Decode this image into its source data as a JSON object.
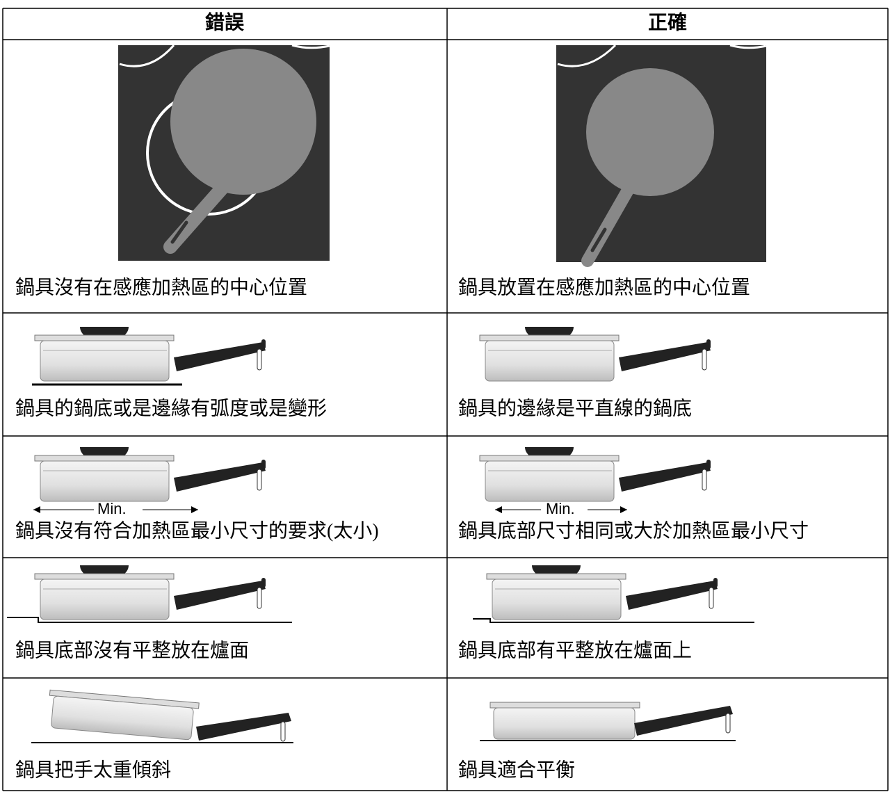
{
  "table": {
    "header": [
      "錯誤",
      "正確"
    ],
    "rows": [
      [
        {
          "caption": "鍋具沒有在感應加熱區的中心位置"
        },
        {
          "caption": "鍋具放置在感應加熱區的中心位置"
        }
      ],
      [
        {
          "caption": "鍋具的鍋底或是邊緣有弧度或是變形"
        },
        {
          "caption": "鍋具的邊緣是平直線的鍋底"
        }
      ],
      [
        {
          "caption": "鍋具沒有符合加熱區最小尺寸的要求(太小)",
          "label": "Min."
        },
        {
          "caption": "鍋具底部尺寸相同或大於加熱區最小尺寸",
          "label": "Min."
        }
      ],
      [
        {
          "caption": "鍋具底部沒有平整放在爐面"
        },
        {
          "caption": "鍋具底部有平整放在爐面上"
        }
      ],
      [
        {
          "caption": "鍋具把手太重傾斜"
        },
        {
          "caption": "鍋具適合平衡"
        }
      ]
    ]
  }
}
